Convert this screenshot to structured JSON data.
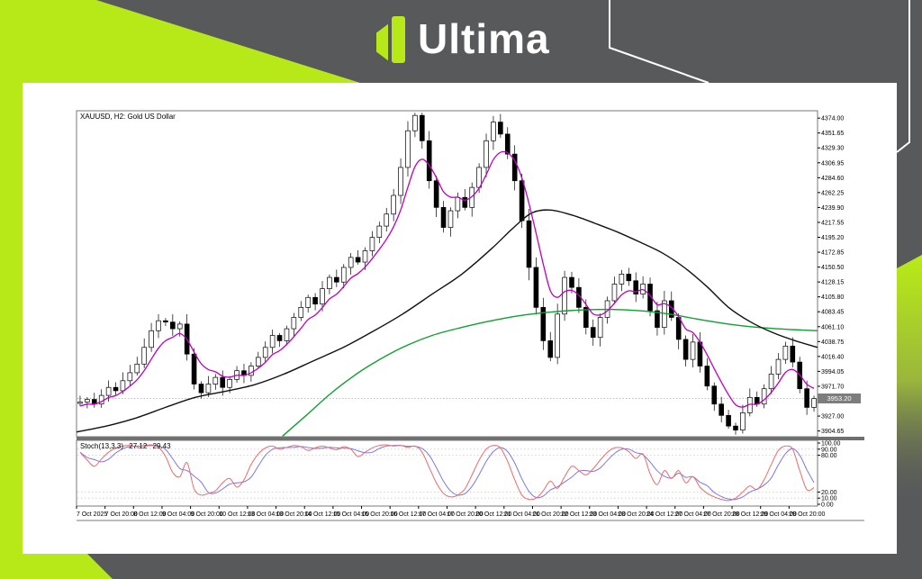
{
  "header": {
    "logo_text": "Ultima"
  },
  "colors": {
    "background": "#58595b",
    "accent_lime": "#b7e919",
    "card": "#ffffff",
    "pane_border": "#7a7a7a",
    "separator": "#6f6f6f",
    "axis_text": "#000000",
    "candle_up": "#ffffff",
    "candle_down": "#000000",
    "ma_fast": "#bf00bf",
    "ma_mid": "#111111",
    "ma_slow": "#0fa030",
    "stoch_main": "#ef6a6a",
    "stoch_signal": "#7878ea",
    "price_line": "#a9a9a9",
    "price_box_bg": "#7d7d7d",
    "grid_dotted": "#c9c9c9"
  },
  "chart_data": {
    "type": "candlestick",
    "title": "XAUUSD, H2: Gold US Dollar",
    "price_axis_range": {
      "max": 4385,
      "min": 3896
    },
    "price_axis_labels": [
      "4374.00",
      "4351.65",
      "4329.30",
      "4306.95",
      "4284.60",
      "4262.25",
      "4239.90",
      "4217.55",
      "4195.20",
      "4172.85",
      "4150.50",
      "4128.15",
      "4105.80",
      "4083.45",
      "4061.10",
      "4038.75",
      "4016.40",
      "3994.05",
      "3971.70",
      "3927.00",
      "3904.65"
    ],
    "current_price": "3953.20",
    "time_axis_labels": [
      "7 Oct 2025",
      "7 Oct 20:00",
      "8 Oct 12:00",
      "9 Oct 04:00",
      "9 Oct 20:00",
      "10 Oct 12:00",
      "13 Oct 04:00",
      "13 Oct 20:00",
      "14 Oct 12:00",
      "15 Oct 04:00",
      "15 Oct 20:00",
      "16 Oct 12:00",
      "17 Oct 04:00",
      "17 Oct 20:00",
      "20 Oct 12:00",
      "21 Oct 04:00",
      "21 Oct 20:00",
      "22 Oct 12:00",
      "23 Oct 04:00",
      "23 Oct 20:00",
      "24 Oct 12:00",
      "27 Oct 04:00",
      "27 Oct 20:00",
      "28 Oct 12:00",
      "29 Oct 04:00",
      "29 Oct 20:00"
    ],
    "candles": {
      "first_open": 3946,
      "closes": [
        3948,
        3952,
        3945,
        3958,
        3970,
        3965,
        3980,
        3992,
        4005,
        4030,
        4055,
        4070,
        4068,
        4058,
        4065,
        4020,
        3975,
        3962,
        3975,
        3985,
        3970,
        3982,
        3995,
        3988,
        4002,
        4015,
        4030,
        4048,
        4040,
        4058,
        4075,
        4090,
        4105,
        4095,
        4118,
        4135,
        4128,
        4150,
        4165,
        4158,
        4175,
        4195,
        4212,
        4230,
        4258,
        4300,
        4355,
        4378,
        4340,
        4280,
        4240,
        4210,
        4235,
        4255,
        4240,
        4270,
        4300,
        4340,
        4368,
        4350,
        4320,
        4280,
        4220,
        4150,
        4090,
        4040,
        4015,
        4080,
        4135,
        4120,
        4090,
        4060,
        4045,
        4075,
        4100,
        4125,
        4140,
        4130,
        4110,
        4125,
        4085,
        4060,
        4100,
        4075,
        4042,
        4012,
        4038,
        4002,
        3972,
        3945,
        3928,
        3912,
        3906,
        3932,
        3955,
        3945,
        3968,
        3990,
        4012,
        4032,
        4008,
        3968,
        3940,
        3953.2
      ]
    },
    "ma_mid_points": [
      [
        0,
        3903
      ],
      [
        0.04,
        3912
      ],
      [
        0.08,
        3924
      ],
      [
        0.12,
        3940
      ],
      [
        0.16,
        3955
      ],
      [
        0.2,
        3964
      ],
      [
        0.24,
        3974
      ],
      [
        0.28,
        3990
      ],
      [
        0.32,
        4010
      ],
      [
        0.36,
        4030
      ],
      [
        0.4,
        4054
      ],
      [
        0.44,
        4080
      ],
      [
        0.48,
        4110
      ],
      [
        0.52,
        4140
      ],
      [
        0.56,
        4178
      ],
      [
        0.59,
        4210
      ],
      [
        0.615,
        4232
      ],
      [
        0.64,
        4236
      ],
      [
        0.67,
        4228
      ],
      [
        0.7,
        4216
      ],
      [
        0.73,
        4203
      ],
      [
        0.76,
        4188
      ],
      [
        0.79,
        4172
      ],
      [
        0.82,
        4150
      ],
      [
        0.85,
        4122
      ],
      [
        0.88,
        4090
      ],
      [
        0.91,
        4068
      ],
      [
        0.94,
        4052
      ],
      [
        0.97,
        4040
      ],
      [
        1,
        4030
      ]
    ],
    "ma_slow_points": [
      [
        0.278,
        3897
      ],
      [
        0.31,
        3928
      ],
      [
        0.34,
        3958
      ],
      [
        0.37,
        3984
      ],
      [
        0.4,
        4006
      ],
      [
        0.44,
        4030
      ],
      [
        0.48,
        4048
      ],
      [
        0.52,
        4060
      ],
      [
        0.56,
        4070
      ],
      [
        0.6,
        4078
      ],
      [
        0.64,
        4083
      ],
      [
        0.68,
        4086
      ],
      [
        0.72,
        4087
      ],
      [
        0.76,
        4085
      ],
      [
        0.8,
        4080
      ],
      [
        0.84,
        4072
      ],
      [
        0.88,
        4065
      ],
      [
        0.92,
        4060
      ],
      [
        0.96,
        4057
      ],
      [
        1,
        4055
      ]
    ],
    "stochastic": {
      "label": "Stoch(13,3,3)",
      "value_main": "27.12",
      "value_signal": "29.43",
      "ylim": [
        0,
        100
      ],
      "levels": [
        90,
        80,
        20,
        10
      ],
      "axis_labels": [
        "100.00",
        "90.00",
        "80.00",
        "20.00",
        "10.00",
        "0.00"
      ],
      "axis_values": [
        100,
        90,
        80,
        20,
        10,
        0
      ],
      "k_values": [
        85,
        72,
        62,
        74,
        85,
        92,
        95,
        96,
        94,
        96,
        97,
        93,
        78,
        52,
        45,
        68,
        25,
        15,
        18,
        22,
        35,
        42,
        28,
        40,
        65,
        82,
        92,
        95,
        90,
        93,
        96,
        94,
        88,
        92,
        95,
        92,
        89,
        94,
        90,
        78,
        85,
        92,
        96,
        97,
        95,
        96,
        93,
        95,
        85,
        60,
        35,
        18,
        12,
        15,
        25,
        48,
        72,
        90,
        96,
        92,
        70,
        40,
        15,
        8,
        10,
        22,
        38,
        26,
        45,
        62,
        55,
        48,
        58,
        72,
        85,
        92,
        92,
        86,
        75,
        82,
        50,
        32,
        55,
        42,
        55,
        35,
        45,
        28,
        18,
        12,
        8,
        6,
        10,
        20,
        30,
        24,
        40,
        65,
        88,
        95,
        90,
        55,
        24,
        27
      ]
    }
  }
}
